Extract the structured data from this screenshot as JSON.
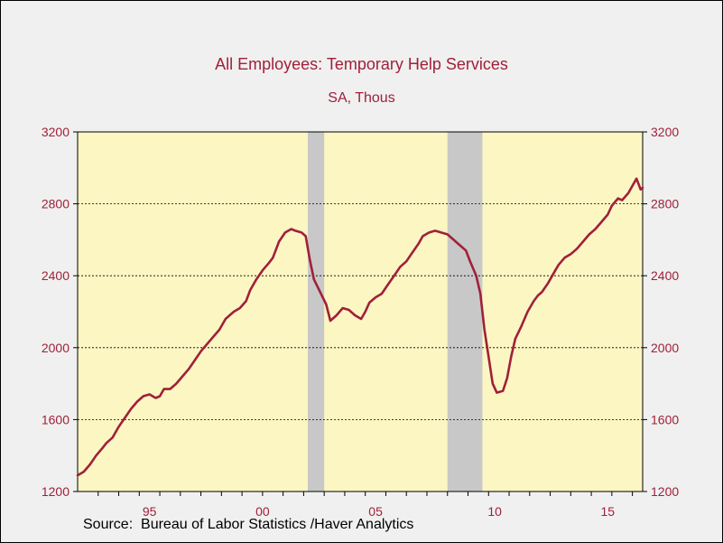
{
  "chart_data": {
    "type": "line",
    "title": "All Employees: Temporary Help Services",
    "subtitle": "SA, Thous",
    "source": "Source:  Bureau of Labor Statistics /Haver Analytics",
    "ylim": [
      1200,
      3200
    ],
    "yticks": [
      1200,
      1600,
      2000,
      2400,
      2800,
      3200
    ],
    "ytick_labels": [
      "1200",
      "1600",
      "2000",
      "2400",
      "2800",
      "3200"
    ],
    "xlim": [
      1990.0,
      2017.5
    ],
    "xtick_labels": [
      {
        "label": "95",
        "year": 1993.5
      },
      {
        "label": "00",
        "year": 1999.0
      },
      {
        "label": "05",
        "year": 2004.5
      },
      {
        "label": "10",
        "year": 2010.3
      },
      {
        "label": "15",
        "year": 2015.8
      }
    ],
    "minor_ticks": [
      1991,
      1992,
      1993,
      1994,
      1995,
      1996,
      1997,
      1998,
      1999,
      2000,
      2001,
      2002,
      2003,
      2004,
      2005,
      2006,
      2007,
      2008,
      2009,
      2010,
      2011,
      2012,
      2013,
      2014,
      2015,
      2016,
      2017
    ],
    "grid": "horizontal dotted",
    "recessions": [
      [
        2001.2,
        2002.0
      ],
      [
        2008.0,
        2009.7
      ]
    ],
    "colors": {
      "line": "#a0203a",
      "plot_bg": "#fbf6c2",
      "recession": "#c8c8c8",
      "text": "#a0203a",
      "page_bg": "#f0f0f0"
    },
    "series": [
      {
        "points": [
          [
            1990.0,
            1290
          ],
          [
            1990.3,
            1310
          ],
          [
            1990.6,
            1350
          ],
          [
            1990.9,
            1400
          ],
          [
            1991.2,
            1440
          ],
          [
            1991.4,
            1470
          ],
          [
            1991.7,
            1500
          ],
          [
            1992.0,
            1560
          ],
          [
            1992.3,
            1610
          ],
          [
            1992.6,
            1660
          ],
          [
            1992.9,
            1700
          ],
          [
            1993.2,
            1730
          ],
          [
            1993.5,
            1740
          ],
          [
            1993.8,
            1720
          ],
          [
            1994.0,
            1730
          ],
          [
            1994.2,
            1770
          ],
          [
            1994.5,
            1770
          ],
          [
            1994.8,
            1800
          ],
          [
            1995.1,
            1840
          ],
          [
            1995.4,
            1880
          ],
          [
            1995.7,
            1930
          ],
          [
            1996.0,
            1980
          ],
          [
            1996.3,
            2020
          ],
          [
            1996.6,
            2060
          ],
          [
            1996.9,
            2100
          ],
          [
            1997.2,
            2160
          ],
          [
            1997.6,
            2200
          ],
          [
            1997.9,
            2220
          ],
          [
            1998.2,
            2260
          ],
          [
            1998.4,
            2320
          ],
          [
            1998.7,
            2380
          ],
          [
            1999.0,
            2430
          ],
          [
            1999.3,
            2470
          ],
          [
            1999.5,
            2500
          ],
          [
            1999.8,
            2590
          ],
          [
            2000.1,
            2640
          ],
          [
            2000.4,
            2660
          ],
          [
            2000.6,
            2650
          ],
          [
            2000.9,
            2640
          ],
          [
            2001.1,
            2620
          ],
          [
            2001.3,
            2490
          ],
          [
            2001.5,
            2380
          ],
          [
            2001.8,
            2310
          ],
          [
            2002.1,
            2240
          ],
          [
            2002.3,
            2150
          ],
          [
            2002.6,
            2180
          ],
          [
            2002.9,
            2220
          ],
          [
            2003.2,
            2210
          ],
          [
            2003.5,
            2180
          ],
          [
            2003.8,
            2160
          ],
          [
            2004.0,
            2200
          ],
          [
            2004.2,
            2250
          ],
          [
            2004.5,
            2280
          ],
          [
            2004.8,
            2300
          ],
          [
            2005.1,
            2350
          ],
          [
            2005.4,
            2400
          ],
          [
            2005.7,
            2450
          ],
          [
            2006.0,
            2480
          ],
          [
            2006.3,
            2530
          ],
          [
            2006.6,
            2580
          ],
          [
            2006.8,
            2620
          ],
          [
            2007.1,
            2640
          ],
          [
            2007.4,
            2650
          ],
          [
            2007.7,
            2640
          ],
          [
            2008.0,
            2630
          ],
          [
            2008.3,
            2600
          ],
          [
            2008.6,
            2570
          ],
          [
            2008.9,
            2540
          ],
          [
            2009.1,
            2480
          ],
          [
            2009.4,
            2400
          ],
          [
            2009.6,
            2300
          ],
          [
            2009.8,
            2100
          ],
          [
            2010.0,
            1950
          ],
          [
            2010.2,
            1800
          ],
          [
            2010.4,
            1750
          ],
          [
            2010.7,
            1760
          ],
          [
            2010.9,
            1830
          ],
          [
            2011.1,
            1950
          ],
          [
            2011.3,
            2050
          ],
          [
            2011.6,
            2120
          ],
          [
            2011.9,
            2200
          ],
          [
            2012.2,
            2260
          ],
          [
            2012.4,
            2290
          ],
          [
            2012.6,
            2310
          ],
          [
            2012.9,
            2360
          ],
          [
            2013.2,
            2420
          ],
          [
            2013.4,
            2460
          ],
          [
            2013.7,
            2500
          ],
          [
            2014.0,
            2520
          ],
          [
            2014.3,
            2550
          ],
          [
            2014.6,
            2590
          ],
          [
            2014.9,
            2630
          ],
          [
            2015.2,
            2660
          ],
          [
            2015.5,
            2700
          ],
          [
            2015.8,
            2740
          ],
          [
            2016.0,
            2790
          ],
          [
            2016.3,
            2830
          ],
          [
            2016.5,
            2820
          ],
          [
            2016.8,
            2860
          ],
          [
            2017.0,
            2900
          ],
          [
            2017.2,
            2940
          ],
          [
            2017.4,
            2880
          ],
          [
            2017.5,
            2890
          ]
        ]
      }
    ]
  }
}
